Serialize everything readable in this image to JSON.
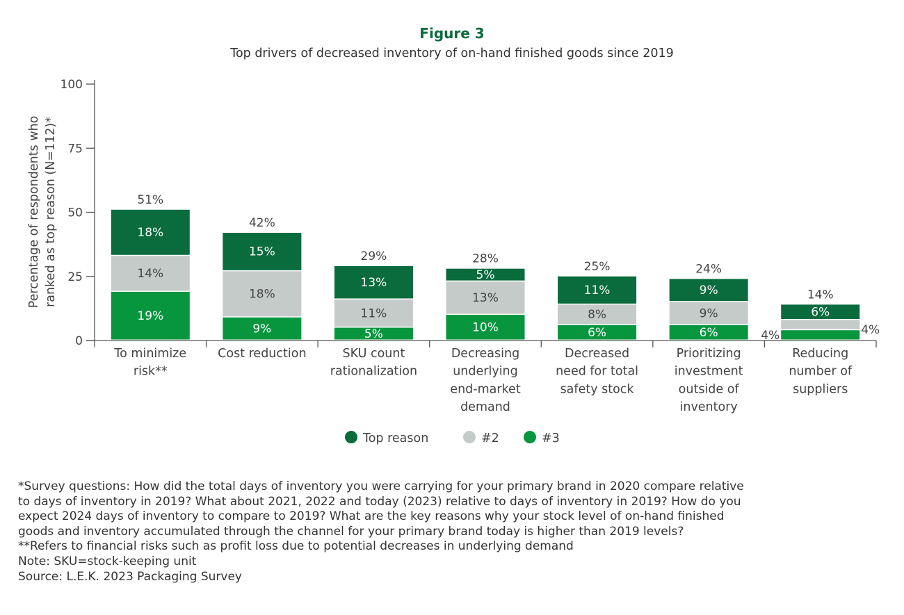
{
  "chart_data": {
    "type": "bar",
    "stacked": true,
    "title": "Figure 3",
    "subtitle": "Top drivers of decreased inventory of on-hand finished goods since 2019",
    "ylabel": [
      "Percentage of respondents who",
      "ranked as top reason (N=112)*"
    ],
    "xlabel": "",
    "ylim": [
      0,
      100
    ],
    "yticks": [
      0,
      25,
      50,
      75,
      100
    ],
    "grid": false,
    "legend_position": "bottom",
    "categories": [
      [
        "To minimize",
        "risk**"
      ],
      [
        "Cost reduction"
      ],
      [
        "SKU count",
        "rationalization"
      ],
      [
        "Decreasing",
        "underlying",
        "end-market",
        "demand"
      ],
      [
        "Decreased",
        "need for total",
        "safety stock"
      ],
      [
        "Prioritizing",
        "investment",
        "outside of",
        "inventory"
      ],
      [
        "Reducing",
        "number of",
        "suppliers"
      ]
    ],
    "totals": [
      "51%",
      "42%",
      "29%",
      "28%",
      "25%",
      "24%",
      "14%"
    ],
    "series": [
      {
        "name": "#3",
        "color": "#07963e",
        "text_color": "#ffffff",
        "values": [
          19,
          9,
          5,
          10,
          6,
          6,
          4
        ]
      },
      {
        "name": "#2",
        "color": "#c5cbc8",
        "text_color": "#444444",
        "values": [
          14,
          18,
          11,
          13,
          8,
          9,
          4
        ]
      },
      {
        "name": "Top reason",
        "color": "#0a6b3c",
        "text_color": "#ffffff",
        "values": [
          18,
          15,
          13,
          5,
          11,
          9,
          6
        ]
      }
    ],
    "legend_order": [
      "Top reason",
      "#2",
      "#3"
    ]
  },
  "notes": [
    "*Survey questions: How did the total days of inventory you were carrying for your primary brand in 2020 compare relative",
    "to days of inventory in 2019? What about 2021, 2022 and today (2023) relative to days of inventory in 2019? How do you",
    "expect 2024 days of inventory to compare to 2019? What are the key reasons why your stock level of on-hand finished",
    "goods and inventory accumulated through the channel for your primary brand today is higher than 2019 levels?",
    "**Refers to financial risks such as profit loss due to potential decreases in underlying demand",
    "Note: SKU=stock-keeping unit",
    "Source: L.E.K. 2023 Packaging Survey"
  ]
}
